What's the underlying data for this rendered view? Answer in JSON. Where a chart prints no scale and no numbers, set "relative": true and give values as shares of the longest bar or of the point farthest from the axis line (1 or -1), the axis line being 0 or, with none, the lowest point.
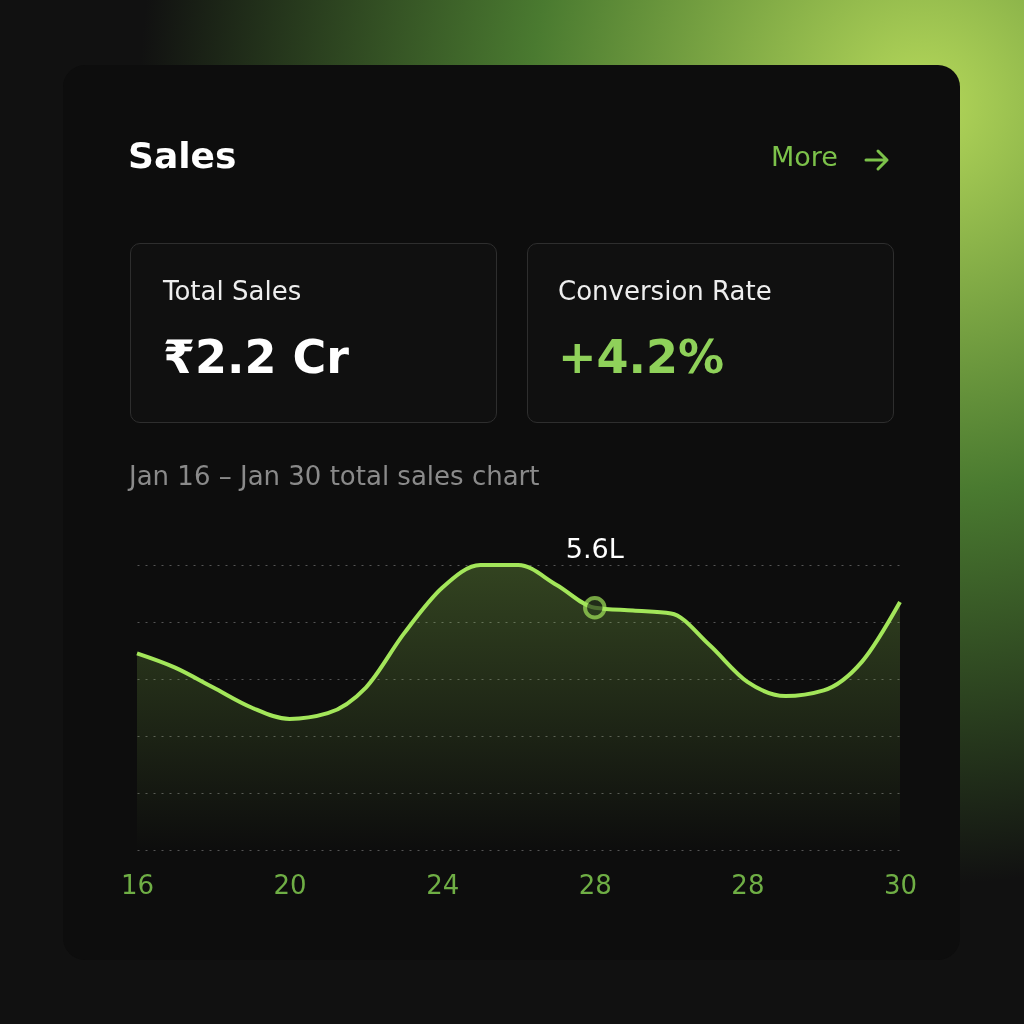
{
  "chart_data": {
    "type": "area",
    "title": "Sales",
    "subtitle": "Jan 16 – Jan 30 total sales chart",
    "annotations": [
      "More",
      "Total Sales",
      "₹2.2 Cr",
      "Conversion Rate",
      "+4.2%",
      {
        "text": "5.6L",
        "x": "28",
        "y": 0.85
      }
    ],
    "categories": [
      "16",
      null,
      null,
      null,
      "20",
      null,
      null,
      null,
      "24",
      null,
      null,
      null,
      "28",
      null,
      null,
      null,
      "28",
      null,
      null,
      null,
      "30"
    ],
    "relative": true,
    "grid": "y",
    "series": [
      {
        "color": "#a3e65a",
        "values": [
          0.69,
          0.64,
          0.57,
          0.5,
          0.46,
          0.48,
          0.57,
          0.76,
          0.92,
          1,
          1,
          0.93,
          0.85,
          0.84,
          0.83,
          0.72,
          0.59,
          0.54,
          0.56,
          0.66,
          0.87
        ]
      }
    ]
  }
}
